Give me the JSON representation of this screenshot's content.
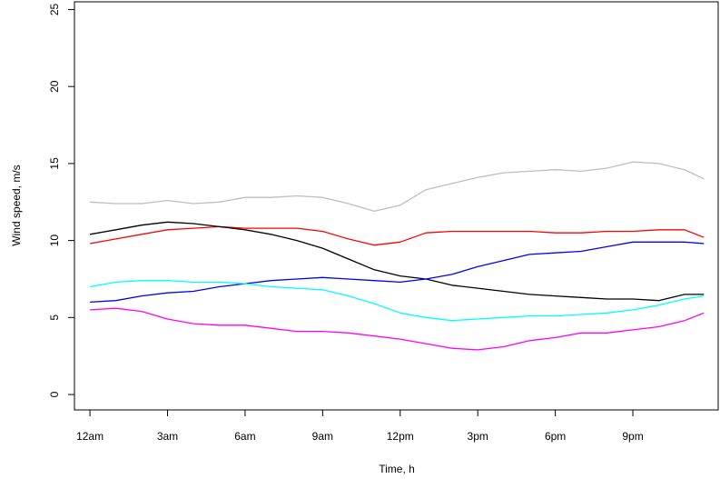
{
  "chart_data": {
    "type": "line",
    "title": "",
    "xlabel": "Time, h",
    "ylabel": "Wind speed, m/s",
    "ylim": [
      -1,
      25.5
    ],
    "xlim": [
      -0.6,
      24.3
    ],
    "grid": false,
    "legend": "none",
    "x_ticks": [
      {
        "value": 0,
        "label": "12am"
      },
      {
        "value": 3,
        "label": "3am"
      },
      {
        "value": 6,
        "label": "6am"
      },
      {
        "value": 9,
        "label": "9am"
      },
      {
        "value": 12,
        "label": "12pm"
      },
      {
        "value": 15,
        "label": "3pm"
      },
      {
        "value": 18,
        "label": "6pm"
      },
      {
        "value": 21,
        "label": "9pm"
      }
    ],
    "y_ticks": [
      {
        "value": 0,
        "label": "0"
      },
      {
        "value": 5,
        "label": "5"
      },
      {
        "value": 10,
        "label": "10"
      },
      {
        "value": 15,
        "label": "15"
      },
      {
        "value": 20,
        "label": "20"
      },
      {
        "value": 25,
        "label": "25"
      }
    ],
    "x": [
      0,
      1,
      2,
      3,
      4,
      5,
      6,
      7,
      8,
      9,
      10,
      11,
      12,
      13,
      14,
      15,
      16,
      17,
      18,
      19,
      20,
      21,
      22,
      23,
      23.75
    ],
    "series": [
      {
        "color": "#bebebe",
        "values": [
          12.5,
          12.4,
          12.4,
          12.6,
          12.4,
          12.5,
          12.8,
          12.8,
          12.9,
          12.8,
          12.4,
          11.9,
          12.3,
          13.3,
          13.7,
          14.1,
          14.4,
          14.5,
          14.6,
          14.5,
          14.7,
          15.1,
          15.0,
          14.6,
          14.0
        ]
      },
      {
        "color": "#ff0000",
        "values": [
          9.8,
          10.1,
          10.4,
          10.7,
          10.8,
          10.9,
          10.8,
          10.8,
          10.8,
          10.6,
          10.1,
          9.7,
          9.9,
          10.5,
          10.6,
          10.6,
          10.6,
          10.6,
          10.5,
          10.5,
          10.6,
          10.6,
          10.7,
          10.7,
          10.2
        ]
      },
      {
        "color": "#000000",
        "values": [
          10.4,
          10.7,
          11.0,
          11.2,
          11.1,
          10.9,
          10.7,
          10.4,
          10.0,
          9.5,
          8.8,
          8.1,
          7.7,
          7.5,
          7.1,
          6.9,
          6.7,
          6.5,
          6.4,
          6.3,
          6.2,
          6.2,
          6.1,
          6.5,
          6.5
        ]
      },
      {
        "color": "#0000ff",
        "values": [
          6.0,
          6.1,
          6.4,
          6.6,
          6.7,
          7.0,
          7.2,
          7.4,
          7.5,
          7.6,
          7.5,
          7.4,
          7.3,
          7.5,
          7.8,
          8.3,
          8.7,
          9.1,
          9.2,
          9.3,
          9.6,
          9.9,
          9.9,
          9.9,
          9.8
        ]
      },
      {
        "color": "#00ffff",
        "values": [
          7.0,
          7.3,
          7.4,
          7.4,
          7.3,
          7.3,
          7.2,
          7.0,
          6.9,
          6.8,
          6.4,
          5.9,
          5.3,
          5.0,
          4.8,
          4.9,
          5.0,
          5.1,
          5.1,
          5.2,
          5.3,
          5.5,
          5.8,
          6.2,
          6.4
        ]
      },
      {
        "color": "#ff00ff",
        "values": [
          5.5,
          5.6,
          5.4,
          4.9,
          4.6,
          4.5,
          4.5,
          4.3,
          4.1,
          4.1,
          4.0,
          3.8,
          3.6,
          3.3,
          3.0,
          2.9,
          3.1,
          3.5,
          3.7,
          4.0,
          4.0,
          4.2,
          4.4,
          4.8,
          5.3
        ]
      }
    ]
  }
}
